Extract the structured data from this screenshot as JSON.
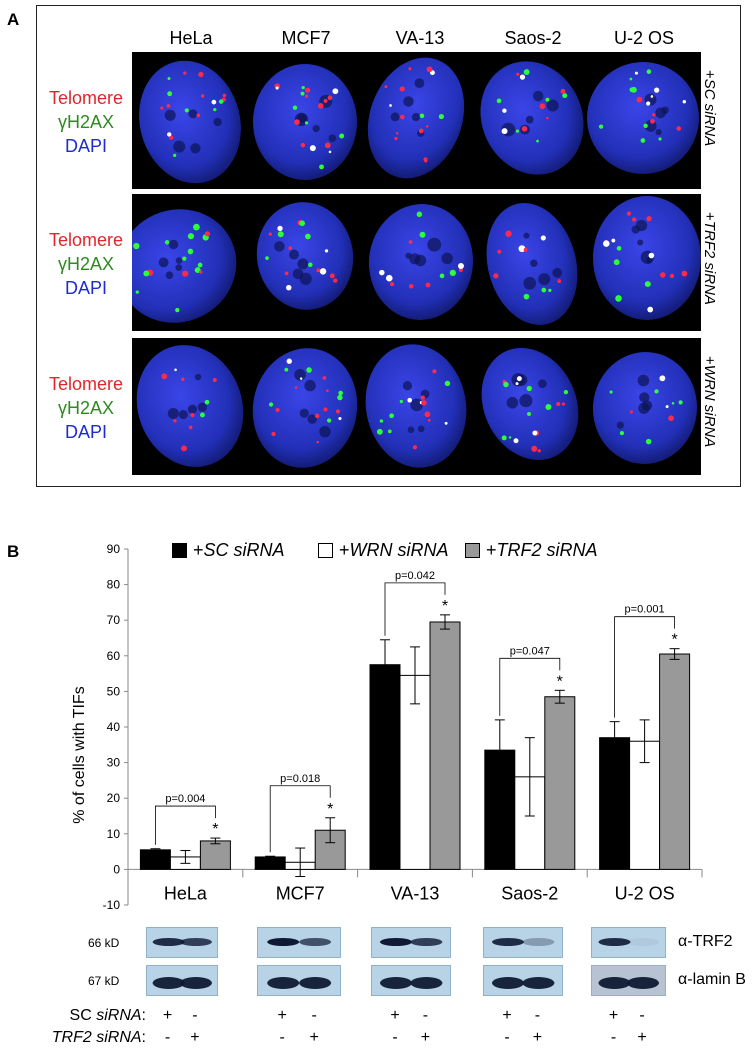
{
  "panelA": {
    "letter": "A",
    "columns": [
      "HeLa",
      "MCF7",
      "VA-13",
      "Saos-2",
      "U-2 OS"
    ],
    "stain_labels": [
      {
        "text": "Telomere",
        "color": "#e0262a"
      },
      {
        "text": "γH2AX",
        "color": "#2e8b1f"
      },
      {
        "text": "DAPI",
        "color": "#1f2bd0"
      }
    ],
    "conditions": [
      {
        "prefix": "+",
        "italic": "SC siRNA"
      },
      {
        "prefix": "+",
        "italic": "TRF2 siRNA"
      },
      {
        "prefix": "+",
        "italic": "WRN siRNA"
      }
    ]
  },
  "panelB": {
    "letter": "B",
    "legend": [
      {
        "prefix": "+",
        "italic": "SC siRNA",
        "color": "#000000"
      },
      {
        "prefix": "+",
        "italic": "WRN siRNA",
        "color": "#ffffff"
      },
      {
        "prefix": "+",
        "italic": "TRF2 siRNA",
        "color": "#999999"
      }
    ]
  },
  "chart_data": {
    "type": "bar",
    "ylabel": "% of cells with TIFs",
    "ylim": [
      -10,
      90
    ],
    "yticks": [
      -10,
      0,
      10,
      20,
      30,
      40,
      50,
      60,
      70,
      80,
      90
    ],
    "grid": false,
    "legend_position": "top",
    "categories": [
      "HeLa",
      "MCF7",
      "VA-13",
      "Saos-2",
      "U-2 OS"
    ],
    "series": [
      {
        "name": "+SC siRNA",
        "color": "#000000",
        "values": [
          5.5,
          3.5,
          57.5,
          33.5,
          37
        ],
        "errors": [
          0.3,
          0.2,
          7,
          8.5,
          4.5
        ]
      },
      {
        "name": "+WRN siRNA",
        "color": "#ffffff",
        "values": [
          3.5,
          2,
          54.5,
          26,
          36
        ],
        "errors": [
          1.8,
          4,
          8,
          11,
          6
        ]
      },
      {
        "name": "+TRF2 siRNA",
        "color": "#999999",
        "values": [
          8,
          11,
          69.5,
          48.5,
          60.5
        ],
        "errors": [
          0.8,
          3.5,
          2,
          1.8,
          1.5
        ]
      }
    ],
    "annotations": [
      {
        "category": "HeLa",
        "pvalue": "p=0.004",
        "star": "*"
      },
      {
        "category": "MCF7",
        "pvalue": "p=0.018",
        "star": "*"
      },
      {
        "category": "VA-13",
        "pvalue": "p=0.042",
        "star": "*"
      },
      {
        "category": "Saos-2",
        "pvalue": "p=0.047",
        "star": "*"
      },
      {
        "category": "U-2 OS",
        "pvalue": "p=0.001",
        "star": "*"
      }
    ]
  },
  "western": {
    "kd_labels": [
      "66 kD",
      "67 kD"
    ],
    "antibodies": [
      "α-TRF2",
      "α-lamin B"
    ],
    "rows": [
      {
        "label_prefix": "SC ",
        "label_italic": "siRNA",
        "label_suffix": ":",
        "signs": [
          "+",
          "-"
        ]
      },
      {
        "label_prefix": "",
        "label_italic": "TRF2 siRNA",
        "label_suffix": ":",
        "signs": [
          "-",
          "+"
        ]
      }
    ]
  }
}
